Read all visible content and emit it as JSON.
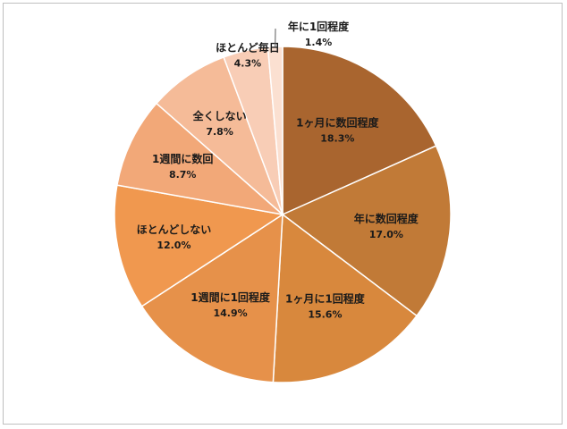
{
  "chart_data": {
    "type": "pie",
    "start_angle_deg": 0,
    "direction": "clockwise",
    "slices": [
      {
        "label": "1ヶ月に数回程度",
        "value": 18.3,
        "value_text": "18.3%",
        "color": "#a9652f"
      },
      {
        "label": "年に数回程度",
        "value": 17.0,
        "value_text": "17.0%",
        "color": "#c17a37"
      },
      {
        "label": "1ヶ月に1回程度",
        "value": 15.6,
        "value_text": "15.6%",
        "color": "#d8883d"
      },
      {
        "label": "1週間に1回程度",
        "value": 14.9,
        "value_text": "14.9%",
        "color": "#e6914a"
      },
      {
        "label": "ほとんどしない",
        "value": 12.0,
        "value_text": "12.0%",
        "color": "#f0984f"
      },
      {
        "label": "1週間に数回",
        "value": 8.7,
        "value_text": "8.7%",
        "color": "#f2a878"
      },
      {
        "label": "全くしない",
        "value": 7.8,
        "value_text": "7.8%",
        "color": "#f5bb98"
      },
      {
        "label": "ほとんど毎日",
        "value": 4.3,
        "value_text": "4.3%",
        "color": "#f8cdb6"
      },
      {
        "label": "年に1回程度",
        "value": 1.4,
        "value_text": "1.4%",
        "color": "#fbe0d1"
      }
    ]
  }
}
